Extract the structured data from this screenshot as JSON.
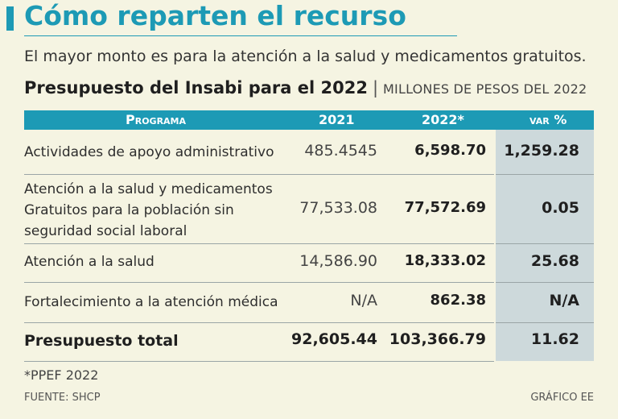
{
  "title": "Cómo reparten el recurso",
  "subtitle": "El mayor monto es para la atención a la salud y medicamentos gratuitos.",
  "table_title": "Presupuesto del Insabi para el 2022",
  "table_units": "MILLONES DE PESOS DEL 2022",
  "headers": {
    "programa": "Programa",
    "y2021": "2021",
    "y2022": "2022*",
    "var": "var %"
  },
  "note": "*PPEF 2022",
  "source": "FUENTE: SHCP",
  "credit": "GRÁFICO EE",
  "colors": {
    "accent": "#1d9ab5",
    "background": "#f5f4e2",
    "var_column": "#cdd9db"
  },
  "chart_data": {
    "type": "table",
    "title": "Presupuesto del Insabi para el 2022",
    "units": "MILLONES DE PESOS DEL 2022",
    "columns": [
      "Programa",
      "2021",
      "2022*",
      "var %"
    ],
    "rows": [
      {
        "programa_lines": [
          "Actividades de apoyo administrativo"
        ],
        "v2021": "485.4545",
        "v2022": "6,598.70",
        "var": "1,259.28"
      },
      {
        "programa_lines": [
          "Atención a la salud y medicamentos",
          "Gratuitos para la población sin",
          "seguridad social laboral"
        ],
        "v2021": "77,533.08",
        "v2022": "77,572.69",
        "var": "0.05"
      },
      {
        "programa_lines": [
          "Atención a la salud"
        ],
        "v2021": "14,586.90",
        "v2022": "18,333.02",
        "var": "25.68"
      },
      {
        "programa_lines": [
          "Fortalecimiento a la atención médica"
        ],
        "v2021": "N/A",
        "v2022": "862.38",
        "var": "N/A"
      },
      {
        "programa_lines": [
          "Presupuesto total"
        ],
        "v2021": "92,605.44",
        "v2022": "103,366.79",
        "var": "11.62"
      }
    ]
  }
}
